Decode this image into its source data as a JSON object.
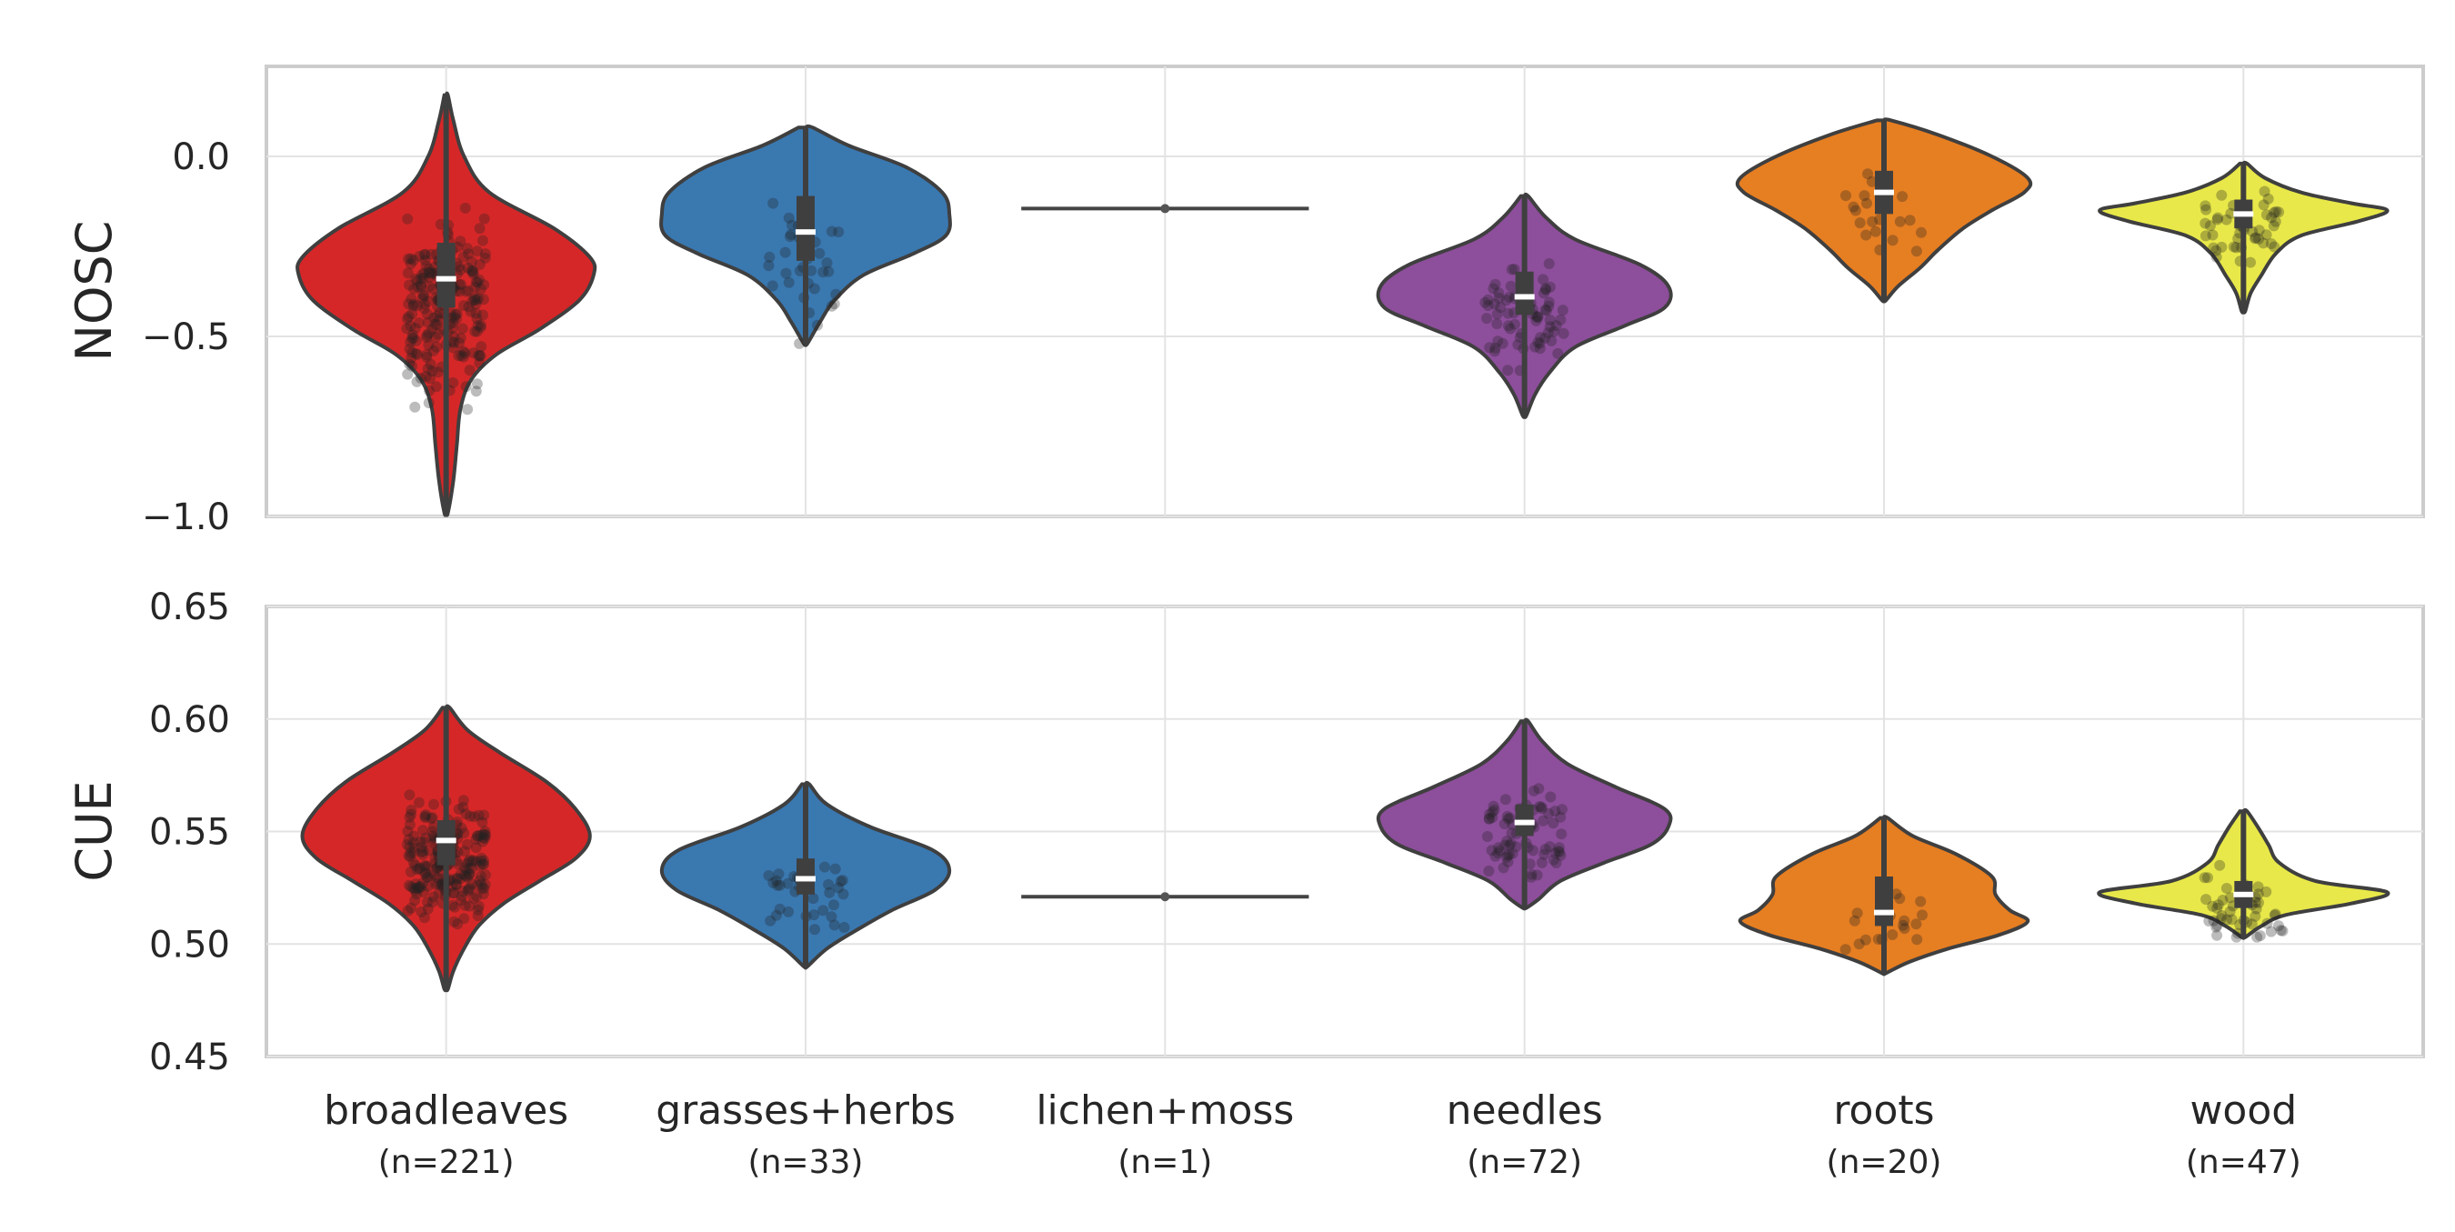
{
  "chart_data": [
    {
      "type": "violin",
      "ylabel": "NOSC",
      "ylim": [
        -1.0,
        0.25
      ],
      "yticks": [
        "0.0",
        "−0.5",
        "−1.0"
      ],
      "ytick_values": [
        0.0,
        -0.5,
        -1.0
      ],
      "grid": true,
      "categories": [
        "broadleaves",
        "grasses+herbs",
        "lichen+moss",
        "needles",
        "roots",
        "wood"
      ],
      "series": [
        {
          "category": "broadleaves",
          "color": "#d62728",
          "min": -0.99,
          "max": 0.17,
          "q1": -0.42,
          "median": -0.34,
          "q3": -0.24,
          "density": [
            [
              0.17,
              0.005
            ],
            [
              0.1,
              0.02
            ],
            [
              0.0,
              0.05
            ],
            [
              -0.1,
              0.12
            ],
            [
              -0.2,
              0.3
            ],
            [
              -0.28,
              0.4
            ],
            [
              -0.33,
              0.41
            ],
            [
              -0.4,
              0.37
            ],
            [
              -0.48,
              0.26
            ],
            [
              -0.55,
              0.14
            ],
            [
              -0.62,
              0.07
            ],
            [
              -0.7,
              0.04
            ],
            [
              -0.8,
              0.03
            ],
            [
              -0.9,
              0.02
            ],
            [
              -0.99,
              0.005
            ]
          ]
        },
        {
          "category": "grasses+herbs",
          "color": "#3a78b0",
          "min": -0.52,
          "max": 0.08,
          "q1": -0.29,
          "median": -0.21,
          "q3": -0.11,
          "density": [
            [
              0.08,
              0.02
            ],
            [
              0.03,
              0.12
            ],
            [
              -0.03,
              0.28
            ],
            [
              -0.1,
              0.38
            ],
            [
              -0.16,
              0.4
            ],
            [
              -0.22,
              0.39
            ],
            [
              -0.27,
              0.3
            ],
            [
              -0.33,
              0.16
            ],
            [
              -0.4,
              0.08
            ],
            [
              -0.46,
              0.04
            ],
            [
              -0.52,
              0.005
            ]
          ]
        },
        {
          "category": "lichen+moss",
          "color": "#444444",
          "single": -0.145
        },
        {
          "category": "needles",
          "color": "#8d4e9b",
          "min": -0.72,
          "max": -0.11,
          "q1": -0.44,
          "median": -0.39,
          "q3": -0.32,
          "density": [
            [
              -0.11,
              0.01
            ],
            [
              -0.17,
              0.06
            ],
            [
              -0.23,
              0.14
            ],
            [
              -0.3,
              0.32
            ],
            [
              -0.36,
              0.4
            ],
            [
              -0.42,
              0.39
            ],
            [
              -0.47,
              0.28
            ],
            [
              -0.53,
              0.14
            ],
            [
              -0.6,
              0.07
            ],
            [
              -0.66,
              0.03
            ],
            [
              -0.72,
              0.005
            ]
          ]
        },
        {
          "category": "roots",
          "color": "#e67e22",
          "min": -0.4,
          "max": 0.1,
          "q1": -0.16,
          "median": -0.1,
          "q3": -0.04,
          "density": [
            [
              0.1,
              0.02
            ],
            [
              0.06,
              0.15
            ],
            [
              0.0,
              0.3
            ],
            [
              -0.06,
              0.4
            ],
            [
              -0.1,
              0.39
            ],
            [
              -0.15,
              0.3
            ],
            [
              -0.2,
              0.22
            ],
            [
              -0.26,
              0.15
            ],
            [
              -0.31,
              0.1
            ],
            [
              -0.36,
              0.04
            ],
            [
              -0.4,
              0.005
            ]
          ]
        },
        {
          "category": "wood",
          "color": "#e8e84a",
          "min": -0.43,
          "max": -0.02,
          "q1": -0.2,
          "median": -0.16,
          "q3": -0.12,
          "density": [
            [
              -0.02,
              0.01
            ],
            [
              -0.06,
              0.06
            ],
            [
              -0.1,
              0.16
            ],
            [
              -0.13,
              0.3
            ],
            [
              -0.15,
              0.4
            ],
            [
              -0.18,
              0.32
            ],
            [
              -0.22,
              0.16
            ],
            [
              -0.27,
              0.09
            ],
            [
              -0.33,
              0.05
            ],
            [
              -0.38,
              0.02
            ],
            [
              -0.43,
              0.005
            ]
          ]
        }
      ]
    },
    {
      "type": "violin",
      "ylabel": "CUE",
      "ylim": [
        0.45,
        0.65
      ],
      "yticks": [
        "0.65",
        "0.60",
        "0.55",
        "0.50",
        "0.45"
      ],
      "ytick_values": [
        0.65,
        0.6,
        0.55,
        0.5,
        0.45
      ],
      "grid": true,
      "categories": [
        "broadleaves",
        "grasses+herbs",
        "lichen+moss",
        "needles",
        "roots",
        "wood"
      ],
      "series": [
        {
          "category": "broadleaves",
          "color": "#d62728",
          "min": 0.48,
          "max": 0.605,
          "q1": 0.535,
          "median": 0.546,
          "q3": 0.555,
          "density": [
            [
              0.605,
              0.01
            ],
            [
              0.595,
              0.06
            ],
            [
              0.585,
              0.15
            ],
            [
              0.572,
              0.28
            ],
            [
              0.56,
              0.36
            ],
            [
              0.548,
              0.4
            ],
            [
              0.538,
              0.36
            ],
            [
              0.528,
              0.26
            ],
            [
              0.518,
              0.16
            ],
            [
              0.508,
              0.09
            ],
            [
              0.498,
              0.05
            ],
            [
              0.488,
              0.02
            ],
            [
              0.48,
              0.005
            ]
          ]
        },
        {
          "category": "grasses+herbs",
          "color": "#3a78b0",
          "min": 0.49,
          "max": 0.571,
          "q1": 0.522,
          "median": 0.529,
          "q3": 0.538,
          "density": [
            [
              0.571,
              0.01
            ],
            [
              0.562,
              0.06
            ],
            [
              0.552,
              0.18
            ],
            [
              0.542,
              0.35
            ],
            [
              0.533,
              0.4
            ],
            [
              0.524,
              0.36
            ],
            [
              0.515,
              0.24
            ],
            [
              0.506,
              0.14
            ],
            [
              0.498,
              0.06
            ],
            [
              0.49,
              0.005
            ]
          ]
        },
        {
          "category": "lichen+moss",
          "color": "#444444",
          "single": 0.521
        },
        {
          "category": "needles",
          "color": "#8d4e9b",
          "min": 0.516,
          "max": 0.599,
          "q1": 0.548,
          "median": 0.554,
          "q3": 0.562,
          "density": [
            [
              0.599,
              0.01
            ],
            [
              0.59,
              0.05
            ],
            [
              0.58,
              0.12
            ],
            [
              0.57,
              0.25
            ],
            [
              0.56,
              0.39
            ],
            [
              0.552,
              0.4
            ],
            [
              0.544,
              0.35
            ],
            [
              0.536,
              0.22
            ],
            [
              0.528,
              0.1
            ],
            [
              0.52,
              0.04
            ],
            [
              0.516,
              0.005
            ]
          ]
        },
        {
          "category": "roots",
          "color": "#e67e22",
          "min": 0.487,
          "max": 0.556,
          "q1": 0.508,
          "median": 0.514,
          "q3": 0.53,
          "density": [
            [
              0.556,
              0.01
            ],
            [
              0.548,
              0.08
            ],
            [
              0.54,
              0.2
            ],
            [
              0.53,
              0.3
            ],
            [
              0.522,
              0.31
            ],
            [
              0.515,
              0.35
            ],
            [
              0.51,
              0.4
            ],
            [
              0.504,
              0.32
            ],
            [
              0.498,
              0.18
            ],
            [
              0.492,
              0.07
            ],
            [
              0.487,
              0.005
            ]
          ]
        },
        {
          "category": "wood",
          "color": "#e8e84a",
          "min": 0.503,
          "max": 0.559,
          "q1": 0.516,
          "median": 0.522,
          "q3": 0.528,
          "density": [
            [
              0.559,
              0.01
            ],
            [
              0.552,
              0.04
            ],
            [
              0.544,
              0.07
            ],
            [
              0.536,
              0.1
            ],
            [
              0.528,
              0.2
            ],
            [
              0.523,
              0.4
            ],
            [
              0.518,
              0.3
            ],
            [
              0.513,
              0.12
            ],
            [
              0.508,
              0.05
            ],
            [
              0.503,
              0.005
            ]
          ]
        }
      ]
    }
  ],
  "x_labels": [
    {
      "name": "broadleaves",
      "count": "(n=221)"
    },
    {
      "name": "grasses+herbs",
      "count": "(n=33)"
    },
    {
      "name": "lichen+moss",
      "count": "(n=1)"
    },
    {
      "name": "needles",
      "count": "(n=72)"
    },
    {
      "name": "roots",
      "count": "(n=20)"
    },
    {
      "name": "wood",
      "count": "(n=47)"
    }
  ]
}
